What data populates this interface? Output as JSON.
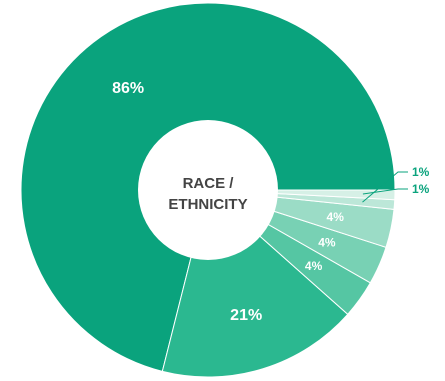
{
  "chart_data": {
    "type": "pie",
    "title": "",
    "center_label": [
      "RACE /",
      "ETHNICITY"
    ],
    "slices": [
      {
        "label": "86%",
        "value": 86,
        "color": "#0aa37d"
      },
      {
        "label": "21%",
        "value": 21,
        "color": "#2bb890"
      },
      {
        "label": "4%",
        "value": 4,
        "color": "#55c6a3"
      },
      {
        "label": "4%",
        "value": 4,
        "color": "#78d1b4"
      },
      {
        "label": "4%",
        "value": 4,
        "color": "#9bdcc6"
      },
      {
        "label": "1%",
        "value": 1,
        "color": "#bce7d8"
      },
      {
        "label": "1%",
        "value": 1,
        "color": "#d6f0e6"
      }
    ],
    "label_color_outside": "#0aa37d"
  }
}
